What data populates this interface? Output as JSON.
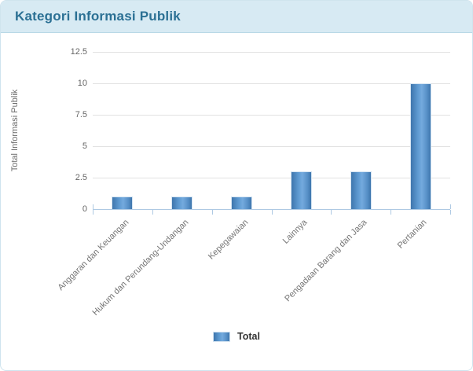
{
  "header": {
    "title": "Kategori Informasi Publik"
  },
  "legend": {
    "label": "Total"
  },
  "colors": {
    "header_bg": "#d7eaf3",
    "header_border": "#b9d8e6",
    "title_text": "#2b7094",
    "bar_dark": "#3e76ad",
    "bar_light": "#74aade",
    "axis_line": "#aec9e3",
    "gridline": "#e2e2e2",
    "tick_text": "#666666",
    "card_border": "#cfe4ee"
  },
  "chart_data": {
    "type": "bar",
    "title": "Kategori Informasi Publik",
    "categories": [
      "Anggaran dan Keuangan",
      "Hukum dan Perundang-Undangan",
      "Kepegawaian",
      "Lainnya",
      "Pengadaan Barang dan Jasa",
      "Pertanian"
    ],
    "series": [
      {
        "name": "Total",
        "values": [
          1,
          1,
          1,
          3,
          3,
          10
        ]
      }
    ],
    "xlabel": "",
    "ylabel": "Total Informasi Publik",
    "yticks": [
      0,
      2.5,
      5,
      7.5,
      10,
      12.5
    ],
    "ylim": [
      0,
      12.5
    ],
    "grid": true,
    "legend_position": "bottom"
  }
}
